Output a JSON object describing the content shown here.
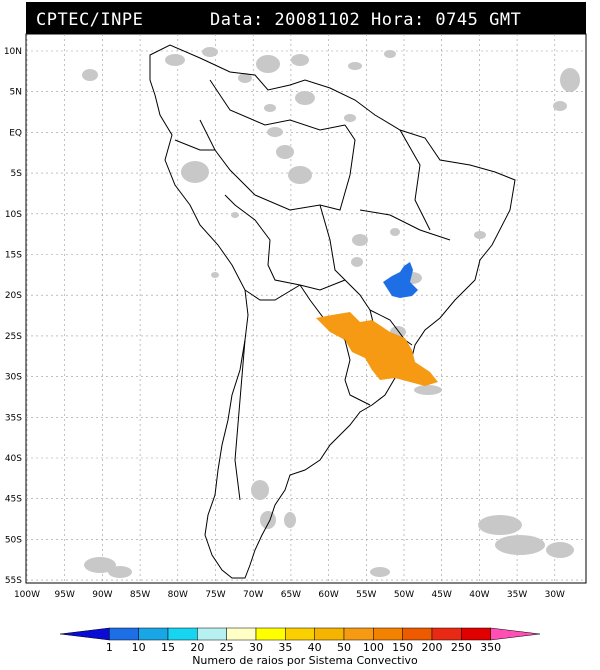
{
  "header": {
    "source": "CPTEC/INPE",
    "timestamp": "Data: 20081102 Hora: 0745 GMT",
    "background": "#000000"
  },
  "map": {
    "lat_labels": [
      "10N",
      "5N",
      "EQ",
      "5S",
      "10S",
      "15S",
      "20S",
      "25S",
      "30S",
      "35S",
      "40S",
      "45S",
      "50S",
      "55S"
    ],
    "lon_labels": [
      "100W",
      "95W",
      "90W",
      "85W",
      "80W",
      "75W",
      "70W",
      "65W",
      "60W",
      "55W",
      "50W",
      "45W",
      "40W",
      "35W",
      "30W"
    ],
    "cloud_color": "#c8c8c8",
    "clusters": [
      {
        "name": "minas-gerais-cluster",
        "category": "10-15",
        "color": "#1e6fe6"
      },
      {
        "name": "southern-brazil-cluster",
        "category": "100-150",
        "color": "#f59a12"
      }
    ]
  },
  "legend": {
    "labels": [
      "1",
      "10",
      "15",
      "20",
      "25",
      "30",
      "35",
      "40",
      "50",
      "100",
      "150",
      "200",
      "250",
      "350"
    ],
    "colors": [
      "#0b0bd6",
      "#1e6fe6",
      "#19a6e6",
      "#17d4f0",
      "#b6f0f0",
      "#ffffc6",
      "#ffff00",
      "#fad000",
      "#f5b400",
      "#f59a12",
      "#f28200",
      "#ee5a00",
      "#e82a14",
      "#e00000",
      "#ff4fb4"
    ],
    "title": "Numero de raios por Sistema Convectivo"
  }
}
